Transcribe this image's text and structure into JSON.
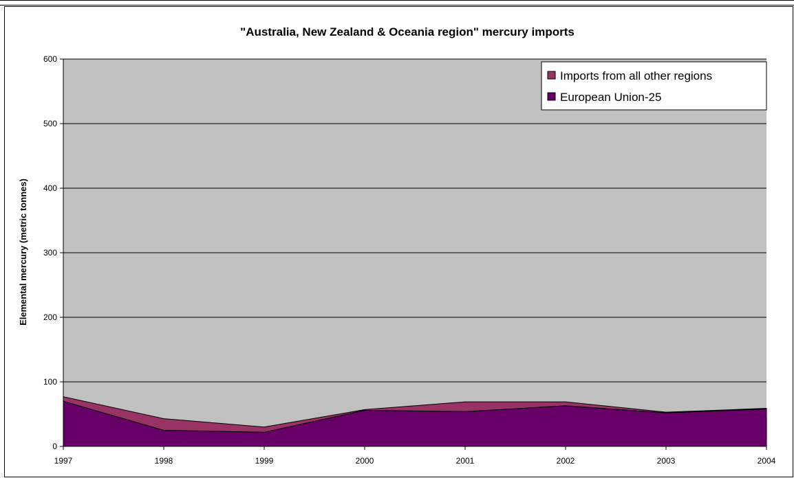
{
  "chart_data": {
    "type": "area",
    "stacked": true,
    "title": "\"Australia, New Zealand & Oceania region\" mercury imports",
    "xlabel": "",
    "ylabel": "Elemental mercury (metric tonnes)",
    "ylim": [
      0,
      600
    ],
    "yticks": [
      0,
      100,
      200,
      300,
      400,
      500,
      600
    ],
    "categories": [
      "1997",
      "1998",
      "1999",
      "2000",
      "2001",
      "2002",
      "2003",
      "2004"
    ],
    "series": [
      {
        "name": "European Union-25",
        "values": [
          70,
          25,
          22,
          56,
          54,
          63,
          52,
          58
        ],
        "color": "#660066"
      },
      {
        "name": "Imports from all other regions",
        "values": [
          7,
          18,
          8,
          1,
          15,
          6,
          1,
          1
        ],
        "color": "#993366"
      }
    ],
    "plot_background": "#c0c0c0",
    "grid": true,
    "legend_position": "top-right"
  }
}
